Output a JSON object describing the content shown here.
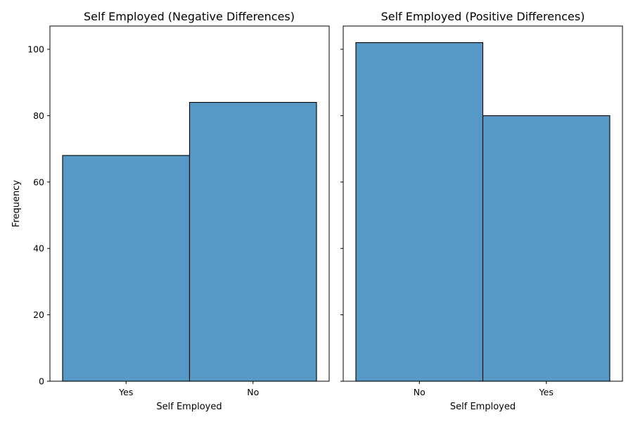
{
  "chart_data": [
    {
      "type": "bar",
      "title": "Self Employed (Negative Differences)",
      "xlabel": "Self Employed",
      "ylabel": "Frequency",
      "categories": [
        "Yes",
        "No"
      ],
      "values": [
        68,
        84
      ],
      "ylim": [
        0,
        107
      ],
      "yticks": [
        0,
        20,
        40,
        60,
        80,
        100
      ],
      "grid": false,
      "bar_color": "#5699c6",
      "edge_color": "#000000"
    },
    {
      "type": "bar",
      "title": "Self Employed (Positive Differences)",
      "xlabel": "Self Employed",
      "ylabel": "",
      "categories": [
        "No",
        "Yes"
      ],
      "values": [
        102,
        80
      ],
      "ylim": [
        0,
        107
      ],
      "yticks": [
        0,
        20,
        40,
        60,
        80,
        100
      ],
      "grid": false,
      "bar_color": "#5699c6",
      "edge_color": "#000000"
    }
  ]
}
